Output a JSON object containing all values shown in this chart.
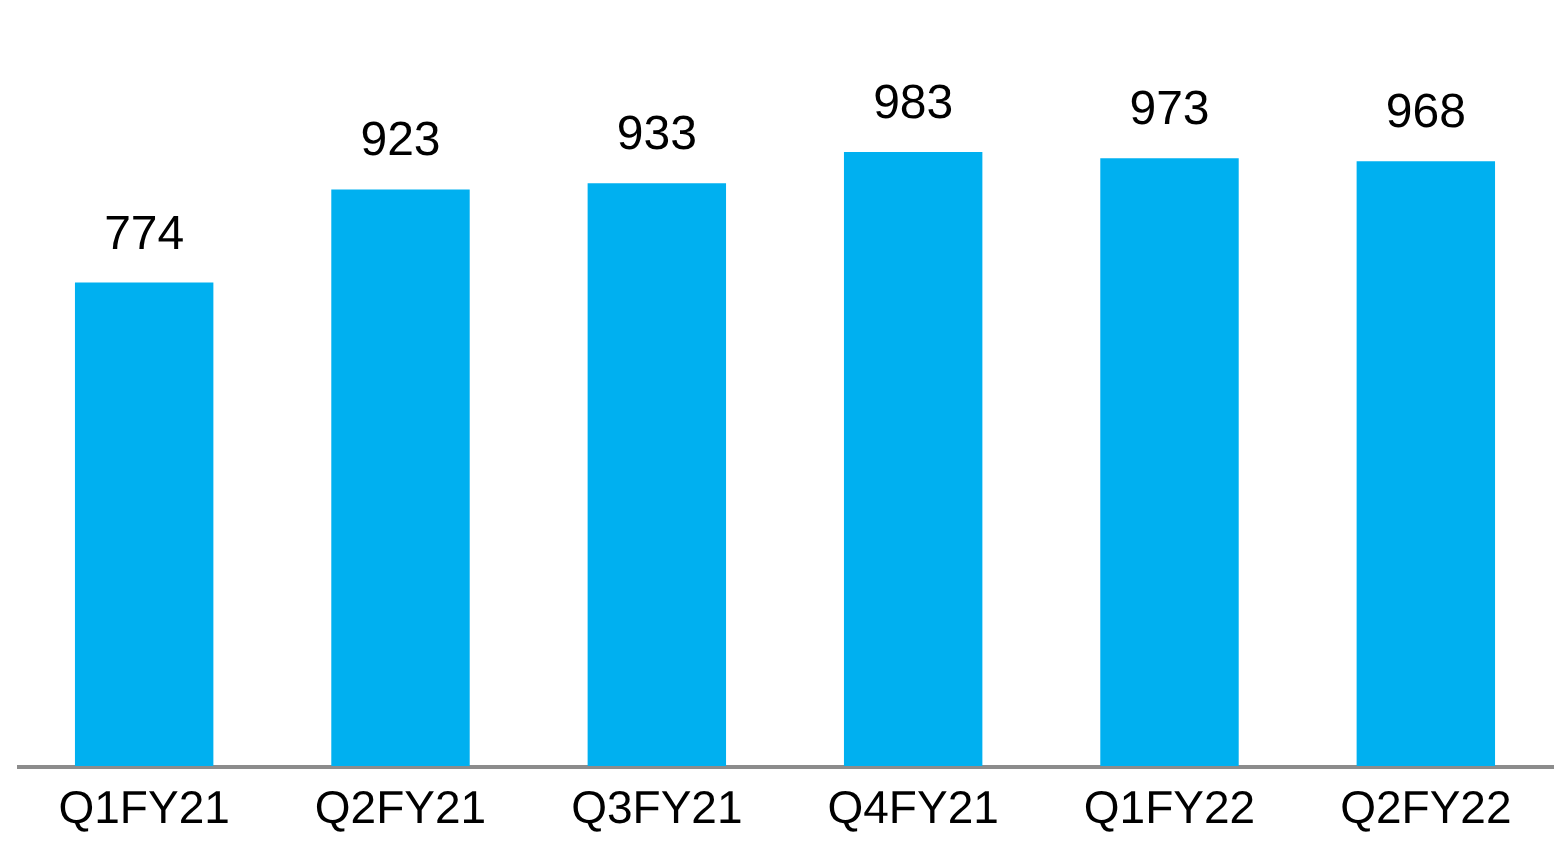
{
  "chart_data": {
    "type": "bar",
    "categories": [
      "Q1FY21",
      "Q2FY21",
      "Q3FY21",
      "Q4FY21",
      "Q1FY22",
      "Q2FY22"
    ],
    "values": [
      774,
      923,
      933,
      983,
      973,
      968
    ],
    "color": "#00b0f0",
    "data_labels": true,
    "tick_labels": "x"
  }
}
